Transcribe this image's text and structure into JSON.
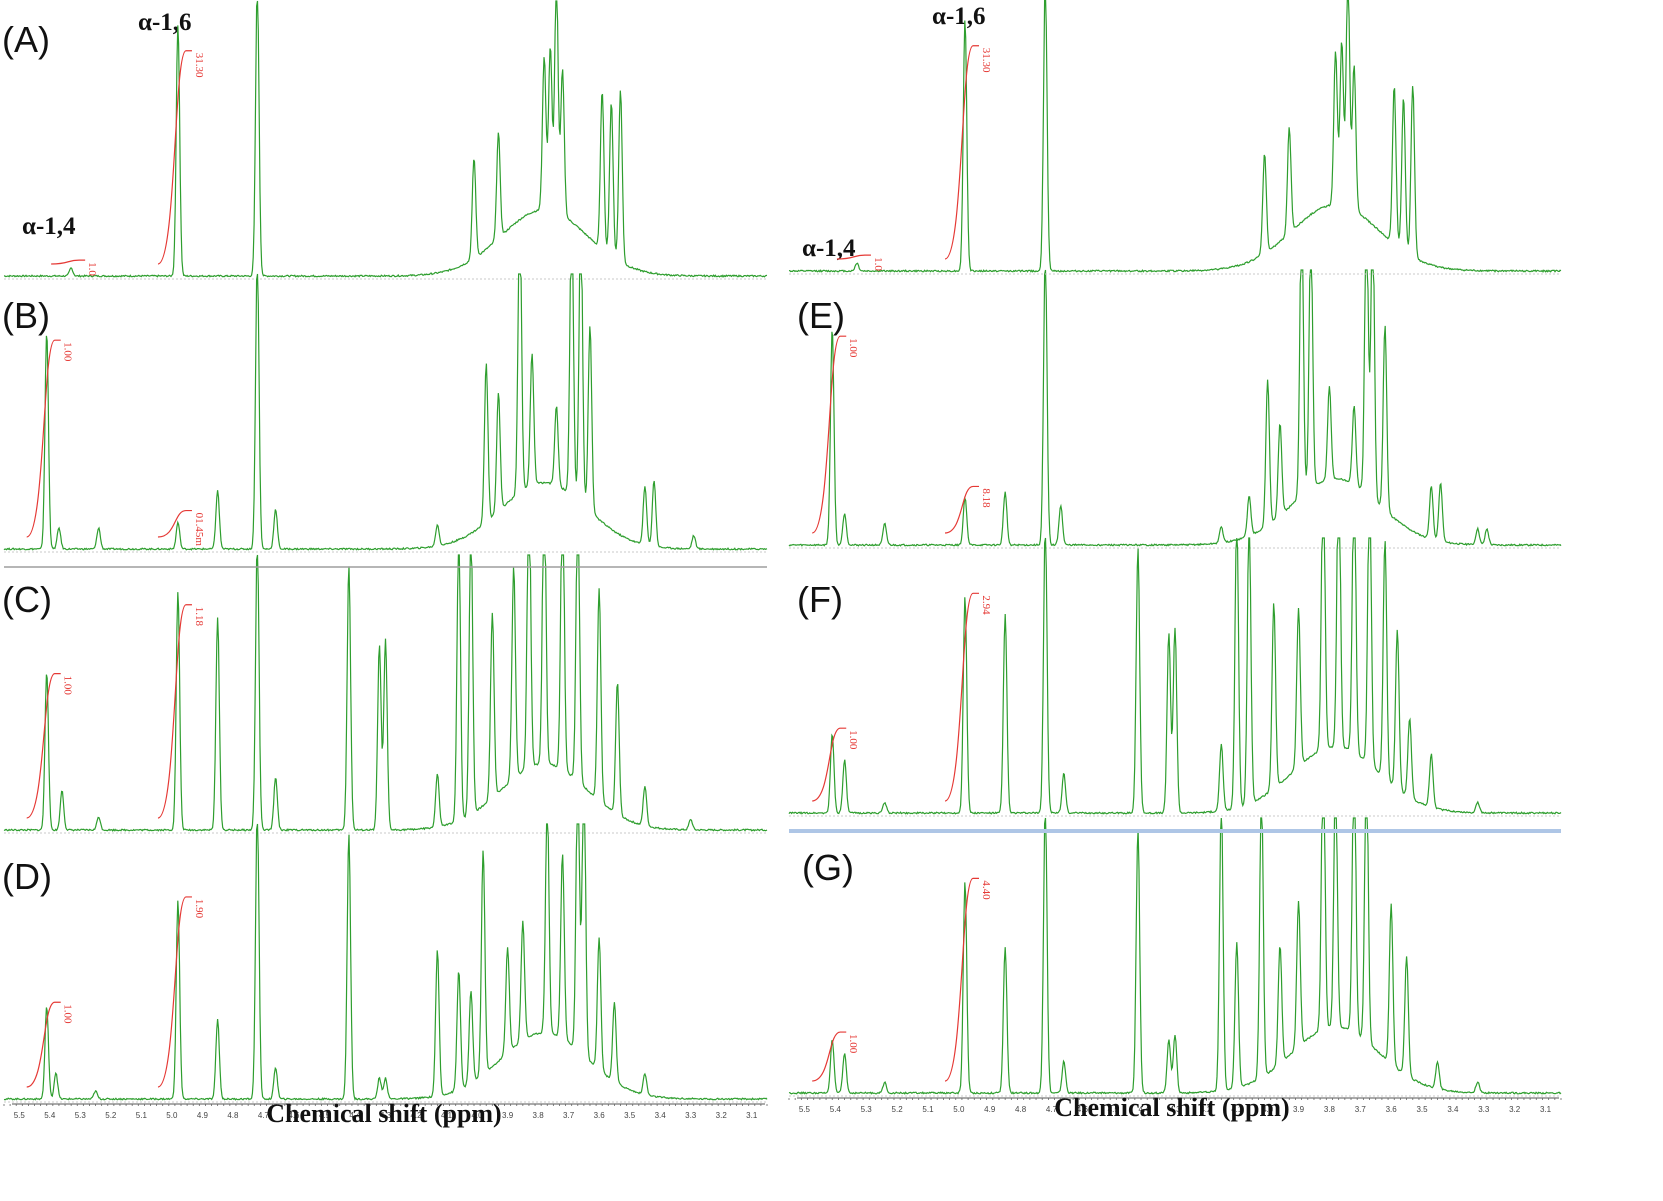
{
  "chart_data": {
    "type": "line",
    "description_axis": "1H NMR spectra, chemical shift axis reversed (high ppm left)",
    "xlabel": "Chemical shift (ppm)",
    "xlim": [
      5.55,
      3.05
    ],
    "x_ticks": [
      5.5,
      5.4,
      5.3,
      5.2,
      5.1,
      5.0,
      4.9,
      4.8,
      4.7,
      4.6,
      4.5,
      4.4,
      4.3,
      4.2,
      4.1,
      4.0,
      3.9,
      3.8,
      3.7,
      3.6,
      3.5,
      3.4,
      3.3,
      3.2,
      3.1
    ],
    "x_tick_labels": [
      "5.5",
      "5.4",
      "5.3",
      "5.2",
      "5.1",
      "5.0",
      "4.9",
      "4.8",
      "4.7",
      "4.6",
      "4.5",
      "4.4",
      "4.3",
      "4.2",
      "4.1",
      "4.0",
      "3.9",
      "3.8",
      "3.7",
      "3.6",
      "3.5",
      "3.4",
      "3.3",
      "3.2",
      "3.1"
    ],
    "line_color": "#2e9e2e",
    "integral_color": "#e53935",
    "panels": [
      {
        "label": "(A)",
        "annotations": [
          "α-1,4",
          "α-1,6"
        ],
        "integrals": [
          "1.0",
          "31.30"
        ],
        "peaks": [
          [
            5.33,
            0.03
          ],
          [
            4.98,
            0.95
          ],
          [
            4.72,
            1.1
          ],
          [
            4.01,
            0.38
          ],
          [
            3.93,
            0.4
          ],
          [
            3.78,
            0.58
          ],
          [
            3.76,
            0.62
          ],
          [
            3.74,
            0.9
          ],
          [
            3.72,
            0.55
          ],
          [
            3.59,
            0.6
          ],
          [
            3.56,
            0.58
          ],
          [
            3.53,
            0.65
          ]
        ]
      },
      {
        "label": "(B)",
        "integrals": [
          "1.00",
          "01.45m"
        ],
        "peaks": [
          [
            5.41,
            0.82
          ],
          [
            5.37,
            0.08
          ],
          [
            5.24,
            0.08
          ],
          [
            4.98,
            0.1
          ],
          [
            4.85,
            0.22
          ],
          [
            4.72,
            1.1
          ],
          [
            4.66,
            0.15
          ],
          [
            4.13,
            0.08
          ],
          [
            3.97,
            0.6
          ],
          [
            3.93,
            0.45
          ],
          [
            3.86,
            1.1
          ],
          [
            3.82,
            0.5
          ],
          [
            3.74,
            0.3
          ],
          [
            3.69,
            1.1
          ],
          [
            3.66,
            1.1
          ],
          [
            3.63,
            0.7
          ],
          [
            3.45,
            0.22
          ],
          [
            3.42,
            0.25
          ],
          [
            3.29,
            0.05
          ]
        ]
      },
      {
        "label": "(C)",
        "integrals": [
          "1.00",
          "1.18"
        ],
        "peaks": [
          [
            5.41,
            0.6
          ],
          [
            5.36,
            0.15
          ],
          [
            5.24,
            0.05
          ],
          [
            4.98,
            0.9
          ],
          [
            4.85,
            0.8
          ],
          [
            4.72,
            1.1
          ],
          [
            4.66,
            0.2
          ],
          [
            4.42,
            1.0
          ],
          [
            4.32,
            0.7
          ],
          [
            4.3,
            0.72
          ],
          [
            4.13,
            0.2
          ],
          [
            4.06,
            1.1
          ],
          [
            4.02,
            1.1
          ],
          [
            3.95,
            0.7
          ],
          [
            3.88,
            0.8
          ],
          [
            3.83,
            1.1
          ],
          [
            3.78,
            1.1
          ],
          [
            3.72,
            1.1
          ],
          [
            3.67,
            1.1
          ],
          [
            3.6,
            0.8
          ],
          [
            3.54,
            0.5
          ],
          [
            3.45,
            0.15
          ],
          [
            3.3,
            0.04
          ]
        ]
      },
      {
        "label": "(D)",
        "integrals": [
          "1.00",
          "1.90"
        ],
        "peaks": [
          [
            5.41,
            0.35
          ],
          [
            5.38,
            0.1
          ],
          [
            5.25,
            0.03
          ],
          [
            4.98,
            0.75
          ],
          [
            4.85,
            0.3
          ],
          [
            4.72,
            1.1
          ],
          [
            4.66,
            0.12
          ],
          [
            4.42,
            1.0
          ],
          [
            4.32,
            0.08
          ],
          [
            4.3,
            0.08
          ],
          [
            4.13,
            0.55
          ],
          [
            4.06,
            0.45
          ],
          [
            4.02,
            0.35
          ],
          [
            3.98,
            0.85
          ],
          [
            3.9,
            0.4
          ],
          [
            3.85,
            0.45
          ],
          [
            3.77,
            0.88
          ],
          [
            3.72,
            0.7
          ],
          [
            3.67,
            1.1
          ],
          [
            3.65,
            1.1
          ],
          [
            3.6,
            0.5
          ],
          [
            3.55,
            0.3
          ],
          [
            3.45,
            0.08
          ]
        ]
      },
      {
        "label": "(E)",
        "integrals": [
          "1.00",
          "8.18"
        ],
        "peaks": [
          [
            5.41,
            0.82
          ],
          [
            5.37,
            0.12
          ],
          [
            5.24,
            0.08
          ],
          [
            4.98,
            0.18
          ],
          [
            4.85,
            0.2
          ],
          [
            4.72,
            1.1
          ],
          [
            4.67,
            0.15
          ],
          [
            4.15,
            0.06
          ],
          [
            4.06,
            0.15
          ],
          [
            4.0,
            0.55
          ],
          [
            3.96,
            0.35
          ],
          [
            3.89,
            1.1
          ],
          [
            3.86,
            1.0
          ],
          [
            3.8,
            0.35
          ],
          [
            3.72,
            0.3
          ],
          [
            3.68,
            1.1
          ],
          [
            3.66,
            1.1
          ],
          [
            3.62,
            0.7
          ],
          [
            3.47,
            0.2
          ],
          [
            3.44,
            0.22
          ],
          [
            3.32,
            0.06
          ],
          [
            3.29,
            0.06
          ]
        ]
      },
      {
        "label": "(F)",
        "integrals": [
          "1.00",
          "2.94"
        ],
        "peaks": [
          [
            5.41,
            0.3
          ],
          [
            5.37,
            0.2
          ],
          [
            5.24,
            0.04
          ],
          [
            4.98,
            0.82
          ],
          [
            4.85,
            0.75
          ],
          [
            4.72,
            1.1
          ],
          [
            4.66,
            0.15
          ],
          [
            4.42,
            1.0
          ],
          [
            4.32,
            0.68
          ],
          [
            4.3,
            0.7
          ],
          [
            4.15,
            0.25
          ],
          [
            4.1,
            1.1
          ],
          [
            4.06,
            1.1
          ],
          [
            3.98,
            0.7
          ],
          [
            3.9,
            0.6
          ],
          [
            3.82,
            1.1
          ],
          [
            3.77,
            1.1
          ],
          [
            3.72,
            1.1
          ],
          [
            3.67,
            1.1
          ],
          [
            3.62,
            0.9
          ],
          [
            3.58,
            0.6
          ],
          [
            3.54,
            0.3
          ],
          [
            3.47,
            0.2
          ],
          [
            3.32,
            0.04
          ]
        ]
      },
      {
        "label": "(G)",
        "integrals": [
          "1.00",
          "4.40"
        ],
        "peaks": [
          [
            5.41,
            0.2
          ],
          [
            5.37,
            0.15
          ],
          [
            5.24,
            0.04
          ],
          [
            4.98,
            0.8
          ],
          [
            4.85,
            0.55
          ],
          [
            4.72,
            1.1
          ],
          [
            4.66,
            0.12
          ],
          [
            4.42,
            1.0
          ],
          [
            4.32,
            0.2
          ],
          [
            4.3,
            0.22
          ],
          [
            4.15,
            1.1
          ],
          [
            4.1,
            0.55
          ],
          [
            4.02,
            1.1
          ],
          [
            3.96,
            0.45
          ],
          [
            3.9,
            0.55
          ],
          [
            3.82,
            1.1
          ],
          [
            3.78,
            0.95
          ],
          [
            3.72,
            1.1
          ],
          [
            3.68,
            1.1
          ],
          [
            3.6,
            0.6
          ],
          [
            3.55,
            0.45
          ],
          [
            3.45,
            0.1
          ],
          [
            3.32,
            0.04
          ]
        ]
      }
    ]
  }
}
